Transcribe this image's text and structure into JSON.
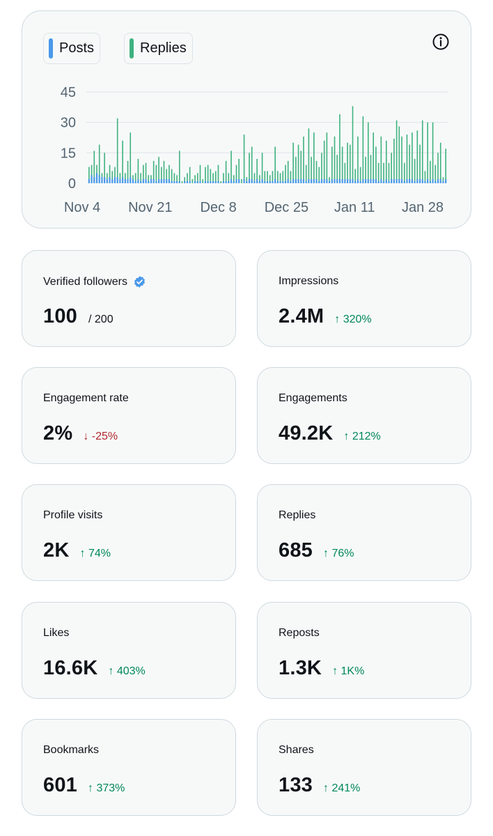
{
  "colors": {
    "posts": "#4a99e9",
    "replies": "#3fb27f",
    "grid": "#e1e6ea",
    "up": "#00875a",
    "down": "#b0282e",
    "verified": "#4a99e9"
  },
  "legend": {
    "posts_label": "Posts",
    "replies_label": "Replies"
  },
  "icons": {
    "info": "info-circle-icon",
    "verified": "verified-badge-icon"
  },
  "chart_data": {
    "type": "bar",
    "series": [
      {
        "name": "Replies",
        "values": [
          8,
          9,
          16,
          9,
          19,
          5,
          15,
          5,
          9,
          6,
          8,
          32,
          5,
          21,
          5,
          11,
          25,
          4,
          5,
          12,
          5,
          9,
          10,
          4,
          4,
          11,
          9,
          13,
          8,
          11,
          7,
          9,
          7,
          5,
          4,
          16,
          1,
          3,
          5,
          8,
          2,
          4,
          5,
          9,
          2,
          8,
          9,
          7,
          5,
          6,
          9,
          1,
          5,
          11,
          5,
          16,
          4,
          9,
          12,
          2,
          24,
          3,
          15,
          18,
          5,
          12,
          4,
          15,
          6,
          6,
          4,
          6,
          18,
          6,
          5,
          6,
          9,
          11,
          6,
          20,
          13,
          19,
          16,
          23,
          9,
          27,
          13,
          25,
          11,
          8,
          15,
          21,
          25,
          3,
          18,
          23,
          14,
          34,
          18,
          10,
          20,
          19,
          38,
          7,
          23,
          8,
          33,
          13,
          30,
          14,
          25,
          18,
          10,
          23,
          10,
          21,
          10,
          15,
          22,
          31,
          28,
          23,
          10,
          24,
          19,
          25,
          12,
          26,
          19,
          31,
          6,
          30,
          11,
          30,
          9,
          15,
          20,
          3,
          17
        ],
        "posts": [
          2,
          4,
          3,
          5,
          4,
          3,
          3,
          2,
          3,
          2,
          3,
          3,
          2,
          3,
          2,
          2,
          3,
          2,
          1,
          2,
          1,
          2,
          2,
          1,
          2,
          2,
          1,
          2,
          2,
          2,
          2,
          2,
          1,
          1,
          1,
          1,
          0,
          1,
          1,
          1,
          0,
          1,
          1,
          1,
          0,
          1,
          1,
          1,
          1,
          1,
          1,
          0,
          1,
          1,
          1,
          2,
          1,
          2,
          2,
          0,
          2,
          1,
          2,
          2,
          1,
          2,
          1,
          2,
          1,
          1,
          1,
          1,
          2,
          1,
          1,
          1,
          1,
          2,
          1,
          2,
          2,
          2,
          2,
          2,
          1,
          2,
          2,
          2,
          2,
          1,
          2,
          2,
          2,
          1,
          2,
          2,
          2,
          2,
          2,
          2,
          2,
          2,
          2,
          1,
          2,
          1,
          2,
          2,
          2,
          2,
          2,
          2,
          1,
          2,
          1,
          2,
          1,
          2,
          2,
          2,
          2,
          2,
          1,
          2,
          2,
          2,
          1,
          2,
          2,
          2,
          1,
          2,
          1,
          2,
          1,
          2,
          2,
          1,
          2
        ]
      }
    ],
    "x_tick_labels": [
      "Nov 4",
      "Nov 21",
      "Dec 8",
      "Dec 25",
      "Jan 11",
      "Jan 28"
    ],
    "y_ticks": [
      0,
      15,
      30,
      45
    ],
    "ylim": [
      0,
      45
    ],
    "title": "",
    "xlabel": "",
    "ylabel": "",
    "grid": true,
    "legend_position": "top-left"
  },
  "stats": [
    {
      "label": "Verified followers",
      "value": "100",
      "sub": "/ 200",
      "delta": "",
      "dir": "",
      "verified": true
    },
    {
      "label": "Impressions",
      "value": "2.4M",
      "sub": "",
      "delta": "320%",
      "dir": "up"
    },
    {
      "label": "Engagement rate",
      "value": "2%",
      "sub": "",
      "delta": "-25%",
      "dir": "down"
    },
    {
      "label": "Engagements",
      "value": "49.2K",
      "sub": "",
      "delta": "212%",
      "dir": "up"
    },
    {
      "label": "Profile visits",
      "value": "2K",
      "sub": "",
      "delta": "74%",
      "dir": "up"
    },
    {
      "label": "Replies",
      "value": "685",
      "sub": "",
      "delta": "76%",
      "dir": "up"
    },
    {
      "label": "Likes",
      "value": "16.6K",
      "sub": "",
      "delta": "403%",
      "dir": "up"
    },
    {
      "label": "Reposts",
      "value": "1.3K",
      "sub": "",
      "delta": "1K%",
      "dir": "up"
    },
    {
      "label": "Bookmarks",
      "value": "601",
      "sub": "",
      "delta": "373%",
      "dir": "up"
    },
    {
      "label": "Shares",
      "value": "133",
      "sub": "",
      "delta": "241%",
      "dir": "up"
    }
  ],
  "arrows": {
    "up": "↑",
    "down": "↓"
  }
}
